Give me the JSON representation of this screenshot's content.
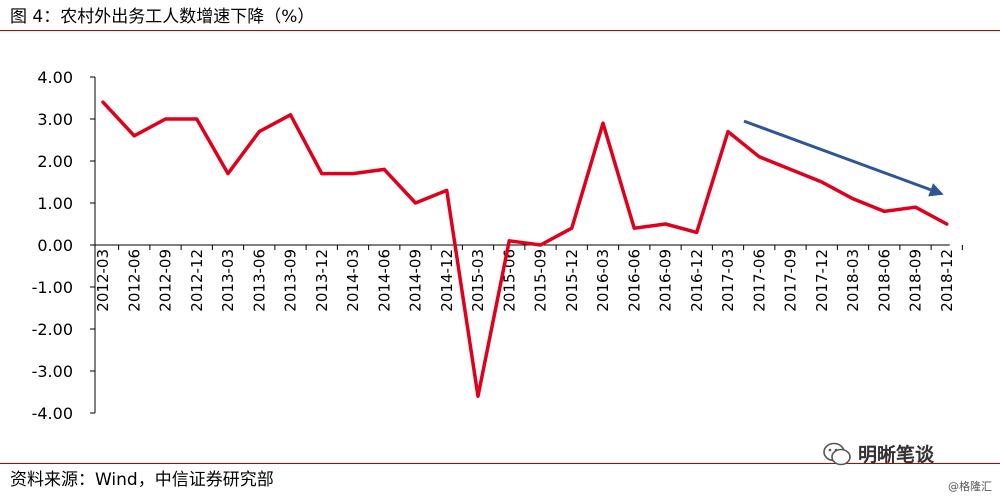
{
  "header": {
    "title": "图 4：农村外出务工人数增速下降（%）"
  },
  "footer": {
    "source": "资料来源：Wind，中信证券研究部"
  },
  "brand": {
    "name": "明晰笔谈",
    "icon": "wechat-icon"
  },
  "watermark": {
    "text": "@格隆汇"
  },
  "colors": {
    "rule": "#c00000",
    "line": "#e0001b",
    "arrow": "#2f5597"
  },
  "chart_data": {
    "type": "line",
    "title": "",
    "xlabel": "",
    "ylabel": "",
    "ylim": [
      -4,
      4
    ],
    "yticks": [
      "4.00",
      "3.00",
      "2.00",
      "1.00",
      "0.00",
      "-1.00",
      "-2.00",
      "-3.00",
      "-4.00"
    ],
    "grid": false,
    "categories": [
      "2012-03",
      "2012-06",
      "2012-09",
      "2012-12",
      "2013-03",
      "2013-06",
      "2013-09",
      "2013-12",
      "2014-03",
      "2014-06",
      "2014-09",
      "2014-12",
      "2015-03",
      "2015-06",
      "2015-09",
      "2015-12",
      "2016-03",
      "2016-06",
      "2016-09",
      "2016-12",
      "2017-03",
      "2017-06",
      "2017-09",
      "2017-12",
      "2018-03",
      "2018-06",
      "2018-09",
      "2018-12"
    ],
    "series": [
      {
        "values": [
          3.4,
          2.6,
          3.0,
          3.0,
          1.7,
          2.7,
          3.1,
          1.7,
          1.7,
          1.8,
          1.0,
          1.3,
          -3.6,
          0.1,
          0.0,
          0.4,
          2.9,
          0.4,
          0.5,
          0.3,
          2.7,
          2.1,
          1.8,
          1.5,
          1.1,
          0.8,
          0.9,
          0.5
        ]
      }
    ],
    "annotations": [
      {
        "type": "arrow",
        "from": {
          "x": "2017-03",
          "y": 2.95
        },
        "to": {
          "x": "2018-12",
          "y": 1.2
        }
      }
    ]
  }
}
